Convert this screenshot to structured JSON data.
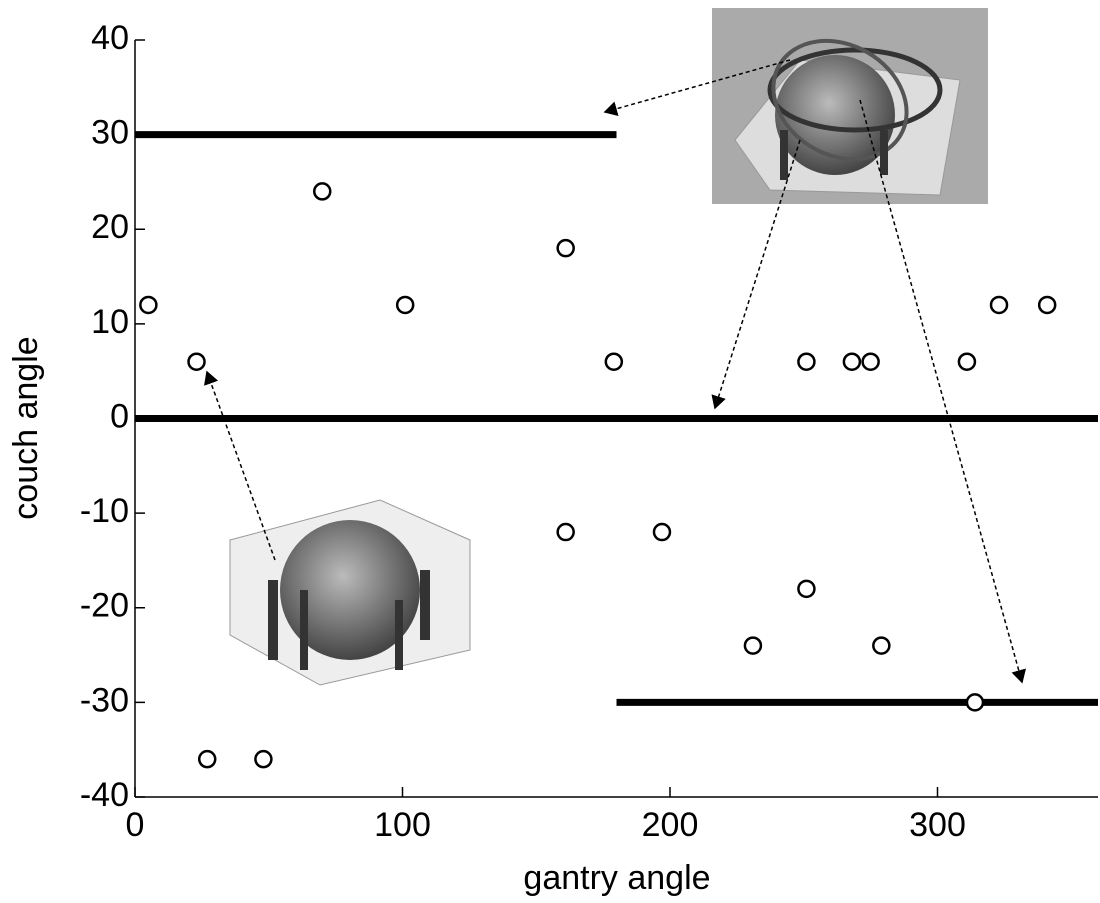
{
  "chart_data": {
    "type": "scatter",
    "xlabel": "gantry angle",
    "ylabel": "couch angle",
    "xlim": [
      0,
      360
    ],
    "ylim": [
      -40,
      40
    ],
    "xticks": [
      0,
      100,
      200,
      300
    ],
    "yticks": [
      -40,
      -30,
      -20,
      -10,
      0,
      10,
      20,
      30,
      40
    ],
    "color": "#000000",
    "x": [
      5,
      23,
      27,
      48,
      70,
      101,
      161,
      161,
      179,
      197,
      231,
      251,
      251,
      268,
      275,
      279,
      311,
      314,
      323,
      341
    ],
    "y": [
      12,
      6,
      -36,
      -36,
      24,
      12,
      18,
      -12,
      6,
      -12,
      -24,
      6,
      -18,
      6,
      6,
      -24,
      6,
      -30,
      12,
      12
    ],
    "lines": [
      {
        "x": [
          0,
          180
        ],
        "y": [
          30,
          30
        ]
      },
      {
        "x": [
          0,
          360
        ],
        "y": [
          0,
          0
        ]
      },
      {
        "x": [
          180,
          360
        ],
        "y": [
          -30,
          -30
        ]
      }
    ]
  }
}
